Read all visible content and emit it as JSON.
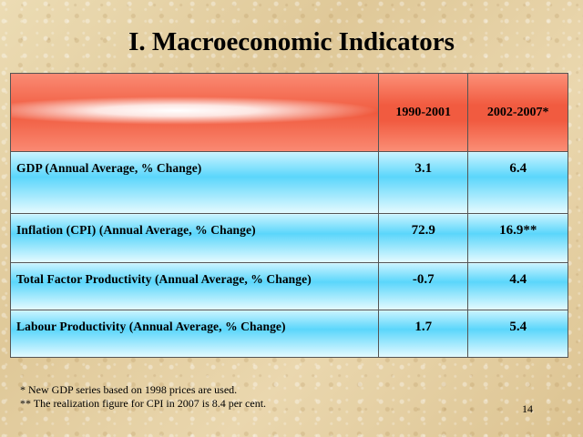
{
  "slide": {
    "title": "I. Macroeconomic Indicators",
    "page_number": "14"
  },
  "table": {
    "header_label": "",
    "columns": [
      "1990-2001",
      "2002-2007*"
    ],
    "rows": [
      {
        "label": "GDP (Annual Average, % Change)",
        "values": [
          "3.1",
          "6.4"
        ]
      },
      {
        "label": "Inflation (CPI) (Annual Average, % Change)",
        "values": [
          "72.9",
          "16.9**"
        ]
      },
      {
        "label": "Total Factor Productivity (Annual Average, % Change)",
        "values": [
          "-0.7",
          "4.4"
        ]
      },
      {
        "label": "Labour Productivity (Annual Average, % Change)",
        "values": [
          "1.7",
          "5.4"
        ]
      }
    ]
  },
  "footnotes": [
    "* New GDP series based on 1998 prices are used.",
    "** The realization figure for CPI in 2007 is 8.4 per cent."
  ],
  "colors": {
    "header_red": "#f15b40",
    "row_blue": "#5bd6fb",
    "background": "#e6d3a6"
  }
}
